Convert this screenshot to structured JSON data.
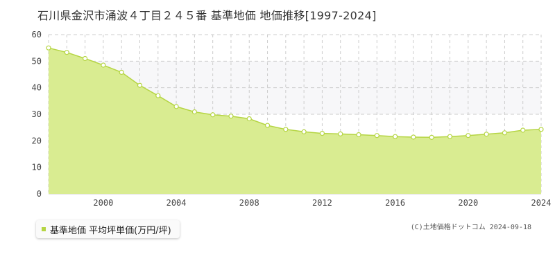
{
  "title": "石川県金沢市涌波４丁目２４５番 基準地価 地価推移[1997-2024]",
  "footer": "(C)土地価格ドットコム 2024-09-18",
  "colors": {
    "fill": "#d9ec91",
    "line": "#b5d543",
    "point_fill": "#ffffff",
    "point_stroke": "#b5d543",
    "plot_band": "#f7f7f9",
    "grid": "#cccccc",
    "legend_swatch": "#b5d543"
  },
  "chart_data": {
    "type": "area",
    "title": "",
    "xlabel": "",
    "ylabel": "",
    "xlim": [
      1997,
      2024
    ],
    "ylim": [
      0,
      60
    ],
    "x_ticks": [
      2000,
      2004,
      2008,
      2012,
      2016,
      2020,
      2024
    ],
    "y_ticks": [
      0,
      10,
      20,
      30,
      40,
      50,
      60
    ],
    "grid": true,
    "legend_position": "bottom-left",
    "series": [
      {
        "name": "基準地価 平均坪単価(万円/坪)",
        "x": [
          1997,
          1998,
          1999,
          2000,
          2001,
          2002,
          2003,
          2004,
          2005,
          2006,
          2007,
          2008,
          2009,
          2010,
          2011,
          2012,
          2013,
          2014,
          2015,
          2016,
          2017,
          2018,
          2019,
          2020,
          2021,
          2022,
          2023,
          2024
        ],
        "values": [
          55.0,
          53.3,
          51.0,
          48.5,
          45.8,
          40.9,
          37.0,
          32.9,
          30.9,
          29.8,
          29.3,
          28.3,
          25.8,
          24.3,
          23.4,
          22.8,
          22.6,
          22.3,
          22.0,
          21.6,
          21.4,
          21.3,
          21.6,
          22.0,
          22.5,
          23.0,
          24.0,
          24.3
        ]
      }
    ]
  }
}
